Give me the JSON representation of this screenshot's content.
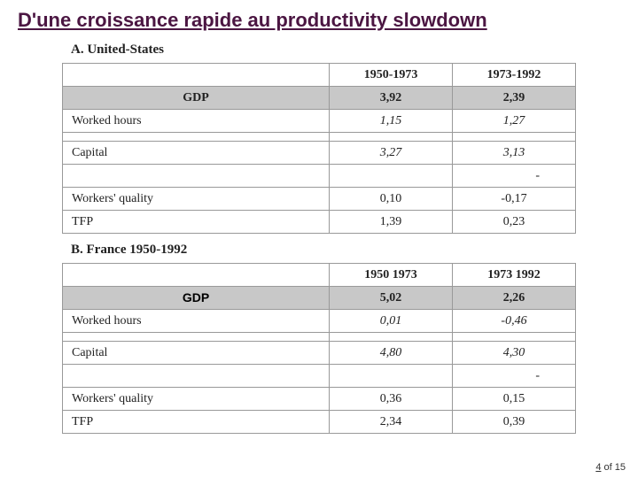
{
  "title": "D'une croissance rapide au productivity slowdown",
  "sectionA": {
    "label": "A. United-States",
    "header": {
      "c0": "",
      "c1": "1950-1973",
      "c2": "1973-1992"
    },
    "gdp": {
      "label": "GDP",
      "c1": "3,92",
      "c2": "2,39"
    },
    "rows": [
      {
        "label": "Worked hours",
        "c1": "1,15",
        "c2": "1,27",
        "italic": true
      },
      {
        "label": "Capital",
        "c1": "3,27",
        "c2": "3,13",
        "italic": true
      },
      {
        "label": "",
        "c1": "",
        "c2": "-",
        "dash": true
      },
      {
        "label": "Workers' quality",
        "c1": "0,10",
        "c2": "-0,17"
      },
      {
        "label": "TFP",
        "c1": "1,39",
        "c2": "0,23"
      }
    ]
  },
  "sectionB": {
    "label": "B. France 1950-1992",
    "header": {
      "c0": "",
      "c1": "1950 1973",
      "c2": "1973 1992"
    },
    "gdp": {
      "label": "GDP",
      "c1": "5,02",
      "c2": "2,26"
    },
    "rows": [
      {
        "label": "Worked hours",
        "c1": "0,01",
        "c2": "-0,46",
        "italic": true
      },
      {
        "label": "Capital",
        "c1": "4,80",
        "c2": "4,30",
        "italic": true
      },
      {
        "label": "",
        "c1": "",
        "c2": "-",
        "dash": true
      },
      {
        "label": "Workers' quality",
        "c1": "0,36",
        "c2": "0,15"
      },
      {
        "label": "TFP",
        "c1": "2,34",
        "c2": "0,39"
      }
    ]
  },
  "pager": {
    "current": "4",
    "of": "of",
    "total": "15"
  },
  "colors": {
    "title": "#4b1642",
    "gdp_bg": "#c8c8c8",
    "border": "#999999",
    "text": "#222222"
  }
}
